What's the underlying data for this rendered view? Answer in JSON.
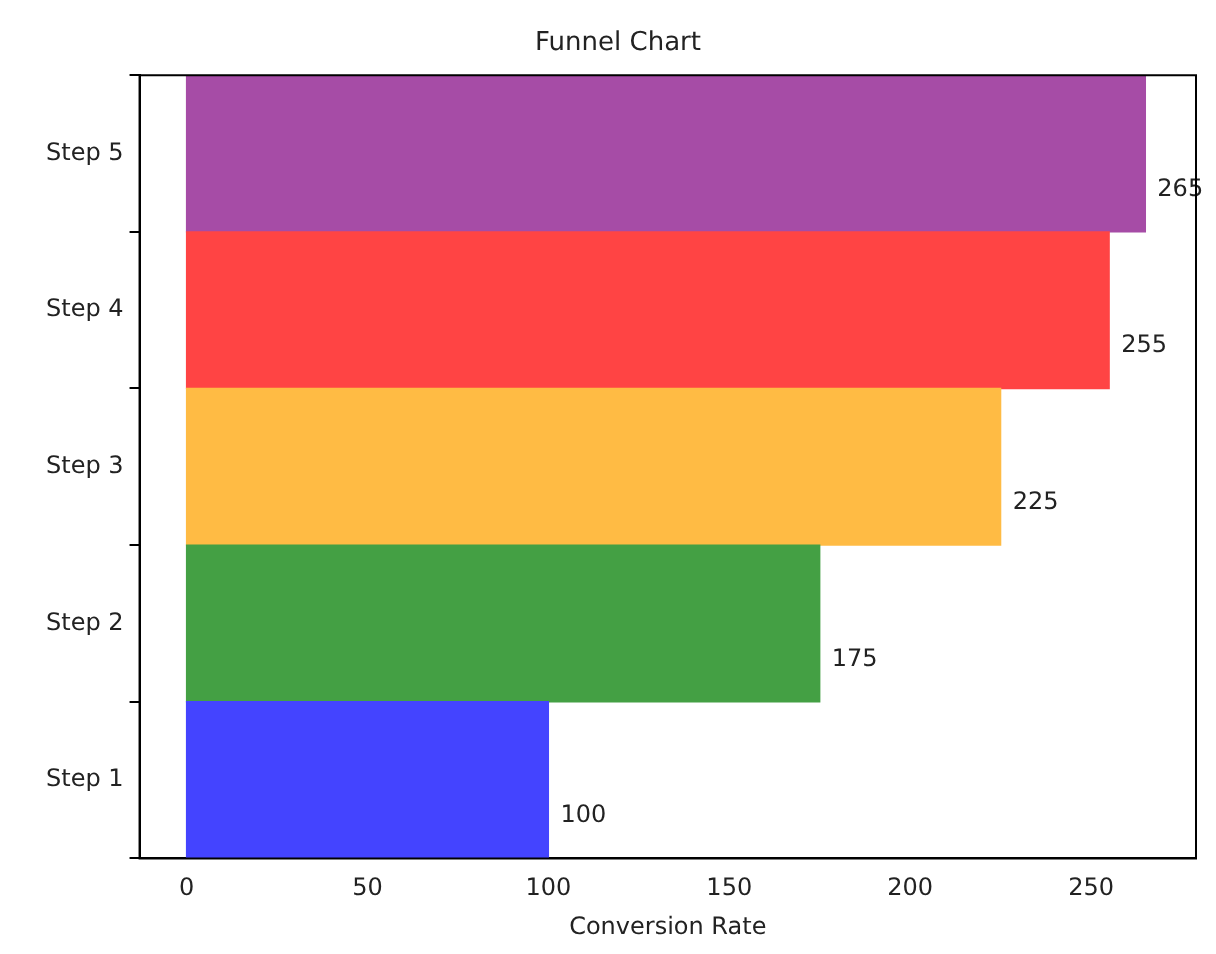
{
  "chart_data": {
    "type": "bar",
    "orientation": "horizontal",
    "title": "Funnel Chart",
    "xlabel": "Conversion Rate",
    "categories": [
      "Step 5",
      "Step 4",
      "Step 3",
      "Step 2",
      "Step 1"
    ],
    "values": [
      265,
      255,
      225,
      175,
      100
    ],
    "colors": [
      "#a64ca6",
      "#ff4444",
      "#ffbb44",
      "#44a044",
      "#4444ff"
    ],
    "xlim": [
      -13,
      279
    ],
    "xticks": [
      0,
      50,
      100,
      150,
      200,
      250
    ],
    "grid": false,
    "data_labels": true,
    "legend": false
  }
}
